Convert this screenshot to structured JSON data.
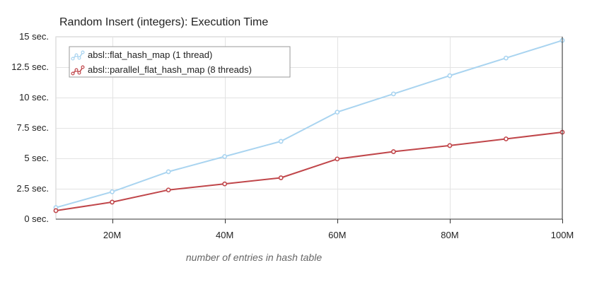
{
  "chart_data": {
    "type": "line",
    "title": "Random Insert (integers): Execution Time",
    "xlabel": "number of entries in hash table",
    "ylabel": "",
    "x": [
      10,
      20,
      30,
      40,
      50,
      60,
      70,
      80,
      90,
      100
    ],
    "xlim": [
      10,
      100
    ],
    "ylim": [
      0,
      15
    ],
    "x_ticks": [
      {
        "value": 20,
        "label": "20M"
      },
      {
        "value": 40,
        "label": "40M"
      },
      {
        "value": 60,
        "label": "60M"
      },
      {
        "value": 80,
        "label": "80M"
      },
      {
        "value": 100,
        "label": "100M"
      }
    ],
    "y_ticks": [
      {
        "value": 0,
        "label": "0 sec."
      },
      {
        "value": 2.5,
        "label": "2.5 sec."
      },
      {
        "value": 5,
        "label": "5 sec."
      },
      {
        "value": 7.5,
        "label": "7.5 sec."
      },
      {
        "value": 10,
        "label": "10 sec."
      },
      {
        "value": 12.5,
        "label": "12.5 sec."
      },
      {
        "value": 15,
        "label": "15 sec."
      }
    ],
    "grid": true,
    "legend_position": "top-left",
    "series": [
      {
        "name": "absl::flat_hash_map (1 thread)",
        "color": "#a9d4f0",
        "values": [
          0.95,
          2.25,
          3.9,
          5.15,
          6.4,
          8.8,
          10.3,
          11.8,
          13.25,
          14.7
        ]
      },
      {
        "name": "absl::parallel_flat_hash_map (8 threads)",
        "color": "#c0464a",
        "values": [
          0.7,
          1.4,
          2.4,
          2.9,
          3.4,
          4.95,
          5.55,
          6.05,
          6.6,
          7.15
        ]
      }
    ]
  }
}
